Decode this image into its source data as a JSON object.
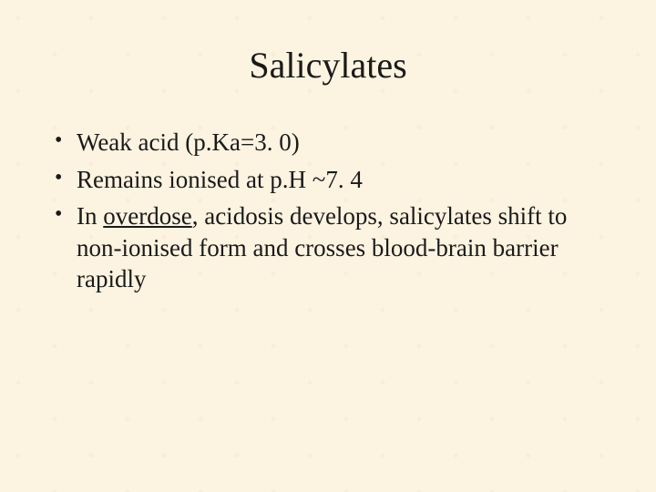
{
  "slide": {
    "title": "Salicylates",
    "background_color": "#fdf3e1",
    "text_color": "#1a1a1a",
    "title_fontsize": 40,
    "body_fontsize": 27,
    "font_family": "Times New Roman",
    "bullets": [
      {
        "text": "Weak acid (p.Ka=3. 0)"
      },
      {
        "text": "Remains ionised at p.H ~7. 4"
      },
      {
        "prefix": "In ",
        "underlined": "overdose",
        "suffix": ", acidosis develops, salicylates shift to non-ionised form and crosses blood-brain barrier rapidly"
      }
    ]
  }
}
